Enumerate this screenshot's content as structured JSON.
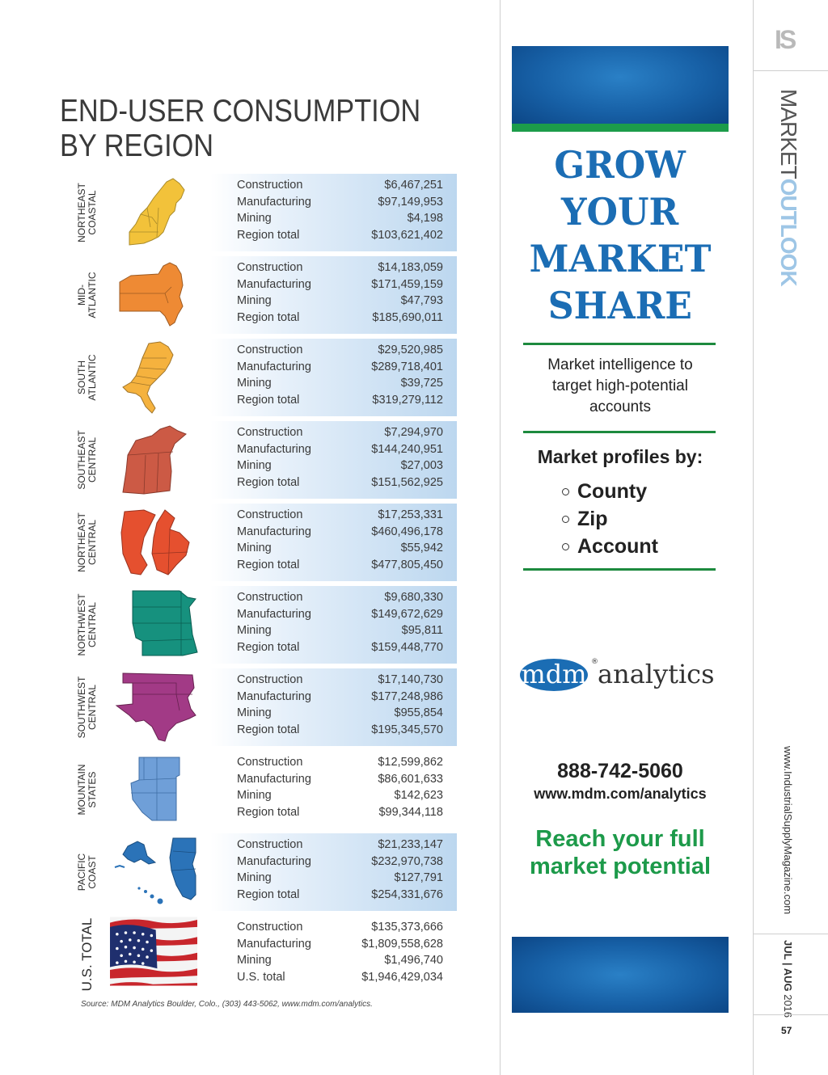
{
  "header": {
    "title_line1": "END-USER CONSUMPTION",
    "title_line2": "BY REGION"
  },
  "regions": [
    {
      "label1": "NORTHEAST",
      "label2": "COASTAL",
      "map_color": "#f2c23a",
      "rows": [
        {
          "label": "Construction",
          "value": "$6,467,251"
        },
        {
          "label": "Manufacturing",
          "value": "$97,149,953"
        },
        {
          "label": "Mining",
          "value": "$4,198"
        },
        {
          "label": "Region total",
          "value": "$103,621,402"
        }
      ]
    },
    {
      "label1": "MID-",
      "label2": "ATLANTIC",
      "map_color": "#ee8a34",
      "rows": [
        {
          "label": "Construction",
          "value": "$14,183,059"
        },
        {
          "label": "Manufacturing",
          "value": "$171,459,159"
        },
        {
          "label": "Mining",
          "value": "$47,793"
        },
        {
          "label": "Region total",
          "value": "$185,690,011"
        }
      ]
    },
    {
      "label1": "SOUTH",
      "label2": "ATLANTIC",
      "map_color": "#f5b23e",
      "rows": [
        {
          "label": "Construction",
          "value": "$29,520,985"
        },
        {
          "label": "Manufacturing",
          "value": "$289,718,401"
        },
        {
          "label": "Mining",
          "value": "$39,725"
        },
        {
          "label": "Region total",
          "value": "$319,279,112"
        }
      ]
    },
    {
      "label1": "SOUTHEAST",
      "label2": "CENTRAL",
      "map_color": "#cc5a45",
      "rows": [
        {
          "label": "Construction",
          "value": "$7,294,970"
        },
        {
          "label": "Manufacturing",
          "value": "$144,240,951"
        },
        {
          "label": "Mining",
          "value": "$27,003"
        },
        {
          "label": "Region total",
          "value": "$151,562,925"
        }
      ]
    },
    {
      "label1": "NORTHEAST",
      "label2": "CENTRAL",
      "map_color": "#e5502f",
      "rows": [
        {
          "label": "Construction",
          "value": "$17,253,331"
        },
        {
          "label": "Manufacturing",
          "value": "$460,496,178"
        },
        {
          "label": "Mining",
          "value": "$55,942"
        },
        {
          "label": "Region total",
          "value": "$477,805,450"
        }
      ]
    },
    {
      "label1": "NORTHWEST",
      "label2": "CENTRAL",
      "map_color": "#16917e",
      "rows": [
        {
          "label": "Construction",
          "value": "$9,680,330"
        },
        {
          "label": "Manufacturing",
          "value": "$149,672,629"
        },
        {
          "label": "Mining",
          "value": "$95,811"
        },
        {
          "label": "Region total",
          "value": "$159,448,770"
        }
      ]
    },
    {
      "label1": "SOUTHWEST",
      "label2": "CENTRAL",
      "map_color": "#a23a86",
      "rows": [
        {
          "label": "Construction",
          "value": "$17,140,730"
        },
        {
          "label": "Manufacturing",
          "value": "$177,248,986"
        },
        {
          "label": "Mining",
          "value": "$955,854"
        },
        {
          "label": "Region total",
          "value": "$195,345,570"
        }
      ]
    },
    {
      "label1": "MOUNTAIN",
      "label2": "STATES",
      "map_color": "#6f9fd8",
      "rows": [
        {
          "label": "Construction",
          "value": "$12,599,862"
        },
        {
          "label": "Manufacturing",
          "value": "$86,601,633"
        },
        {
          "label": "Mining",
          "value": "$142,623"
        },
        {
          "label": "Region total",
          "value": "$99,344,118"
        }
      ]
    },
    {
      "label1": "PACIFIC",
      "label2": "COAST",
      "map_color": "#2b73b8",
      "rows": [
        {
          "label": "Construction",
          "value": "$21,233,147"
        },
        {
          "label": "Manufacturing",
          "value": "$232,970,738"
        },
        {
          "label": "Mining",
          "value": "$127,791"
        },
        {
          "label": "Region total",
          "value": "$254,331,676"
        }
      ]
    }
  ],
  "us_total": {
    "label": "U.S. TOTAL",
    "rows": [
      {
        "label": "Construction",
        "value": "$135,373,666"
      },
      {
        "label": "Manufacturing",
        "value": "$1,809,558,628"
      },
      {
        "label": "Mining",
        "value": "$1,496,740"
      },
      {
        "label": "U.S. total",
        "value": "$1,946,429,034"
      }
    ]
  },
  "source": "Source: MDM Analytics Boulder, Colo., (303) 443-5062, www.mdm.com/analytics.",
  "ad": {
    "headline": [
      "GROW",
      "YOUR",
      "MARKET",
      "SHARE"
    ],
    "intel": [
      "Market intelligence to",
      "target high-potential",
      "accounts"
    ],
    "profiles_title": "Market profiles by:",
    "bullets": [
      "County",
      "Zip",
      "Account"
    ],
    "brand_left": "mdm",
    "brand_right": "analytics",
    "registered": "®",
    "phone": "888-742-5060",
    "url": "www.mdm.com/analytics",
    "reach_line1": "Reach your full",
    "reach_line2": "market potential",
    "colors": {
      "blue": "#1b6db4",
      "green": "#1d9a4a"
    }
  },
  "sidebar": {
    "logo": "IS",
    "section_a": "MARKET",
    "section_b": "OUTLOOK",
    "website": "www.IndustrialSupplyMagazine.com",
    "issue_bold": "JUL | AUG",
    "issue_year": "2016",
    "page_number": "57"
  }
}
